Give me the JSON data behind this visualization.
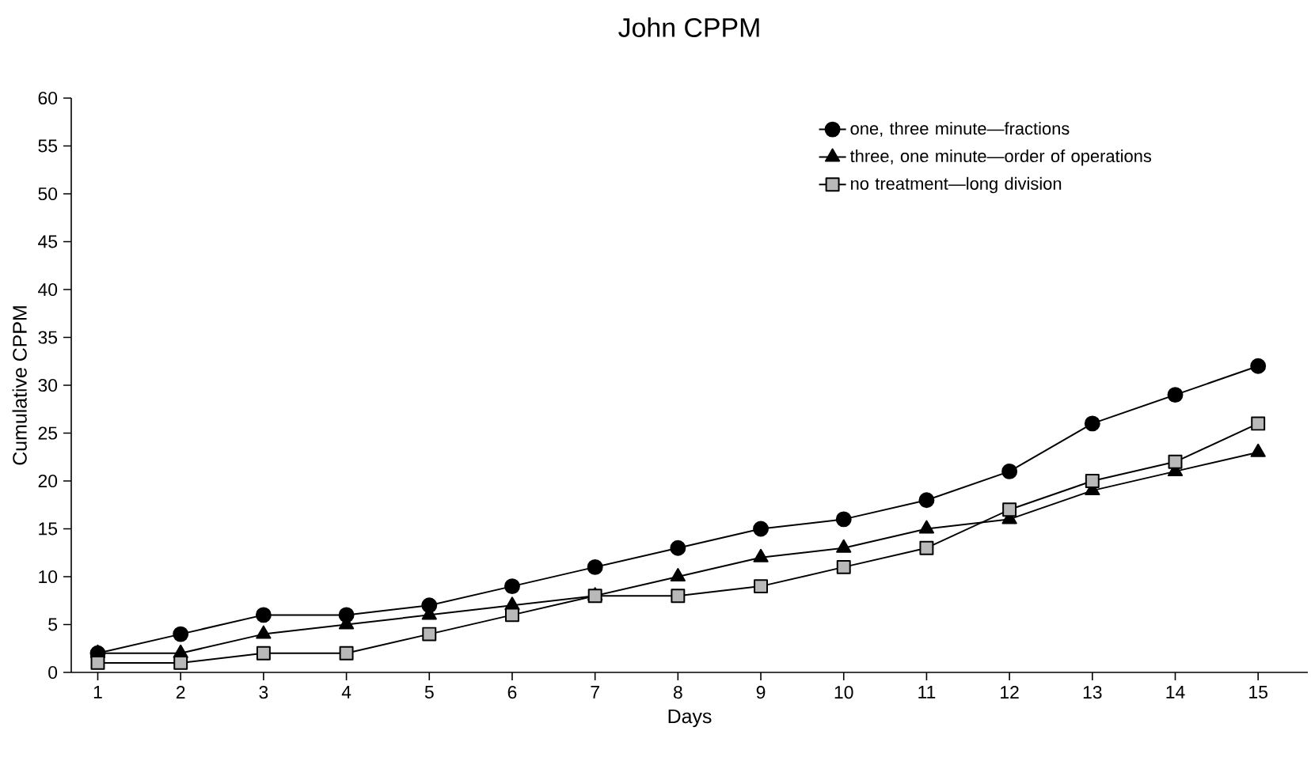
{
  "chart_data": {
    "type": "line",
    "title": "John CPPM",
    "xlabel": "Days",
    "ylabel": "Cumulative CPPM",
    "x": [
      1,
      2,
      3,
      4,
      5,
      6,
      7,
      8,
      9,
      10,
      11,
      12,
      13,
      14,
      15
    ],
    "xlim": [
      0.68,
      15.6
    ],
    "xticks": [
      1,
      2,
      3,
      4,
      5,
      6,
      7,
      8,
      9,
      10,
      11,
      12,
      13,
      14,
      15
    ],
    "ylim": [
      0,
      60
    ],
    "yticks": [
      0,
      5,
      10,
      15,
      20,
      25,
      30,
      35,
      40,
      45,
      50,
      55,
      60
    ],
    "legend": "top right",
    "grid": false,
    "line_style": "solid",
    "series": [
      {
        "name": "one, three minute—fractions",
        "color": "#000000",
        "marker": "circle",
        "values": [
          2,
          4,
          6,
          6,
          7,
          9,
          11,
          13,
          15,
          16,
          18,
          21,
          26,
          29,
          32
        ]
      },
      {
        "name": "three, one minute—order of operations",
        "color": "#000000",
        "marker": "triangle",
        "values": [
          2,
          2,
          4,
          5,
          6,
          7,
          8,
          10,
          12,
          13,
          15,
          16,
          19,
          21,
          23
        ]
      },
      {
        "name": "no treatment—long division",
        "color": "#000000",
        "marker": "square",
        "values": [
          1,
          1,
          2,
          2,
          4,
          6,
          8,
          8,
          9,
          11,
          13,
          17,
          20,
          22,
          26
        ]
      }
    ]
  }
}
